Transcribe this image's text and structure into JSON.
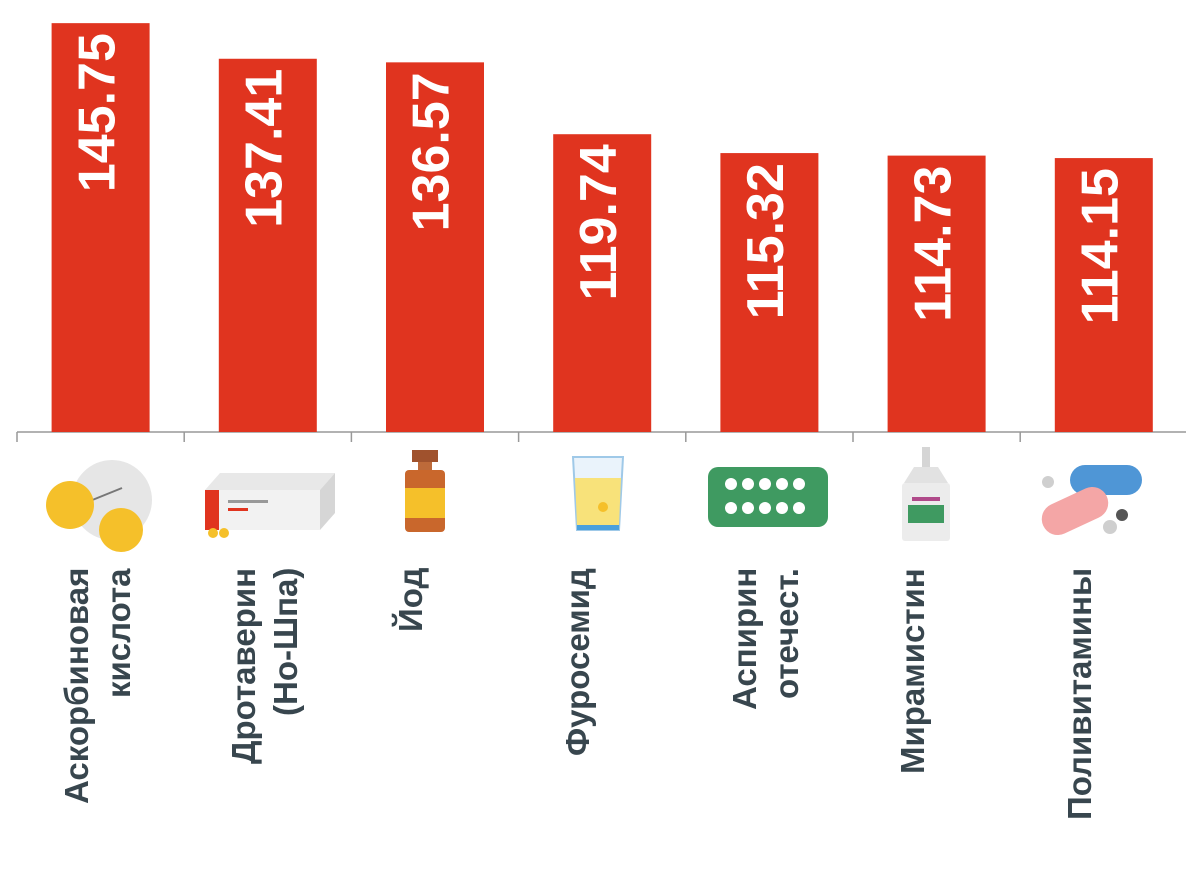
{
  "chart_data": {
    "type": "bar",
    "categories": [
      "Аскорбиновая\nкислота",
      "Дротаверин\n(Но-Шпа)",
      "Йод",
      "Фуросемид",
      "Аспирин\nотечест.",
      "Мирамистин",
      "Поливитамины"
    ],
    "values": [
      145.75,
      137.41,
      136.57,
      119.74,
      115.32,
      114.73,
      114.15
    ],
    "color": "#e0341f",
    "ylim": [
      50,
      150
    ]
  }
}
